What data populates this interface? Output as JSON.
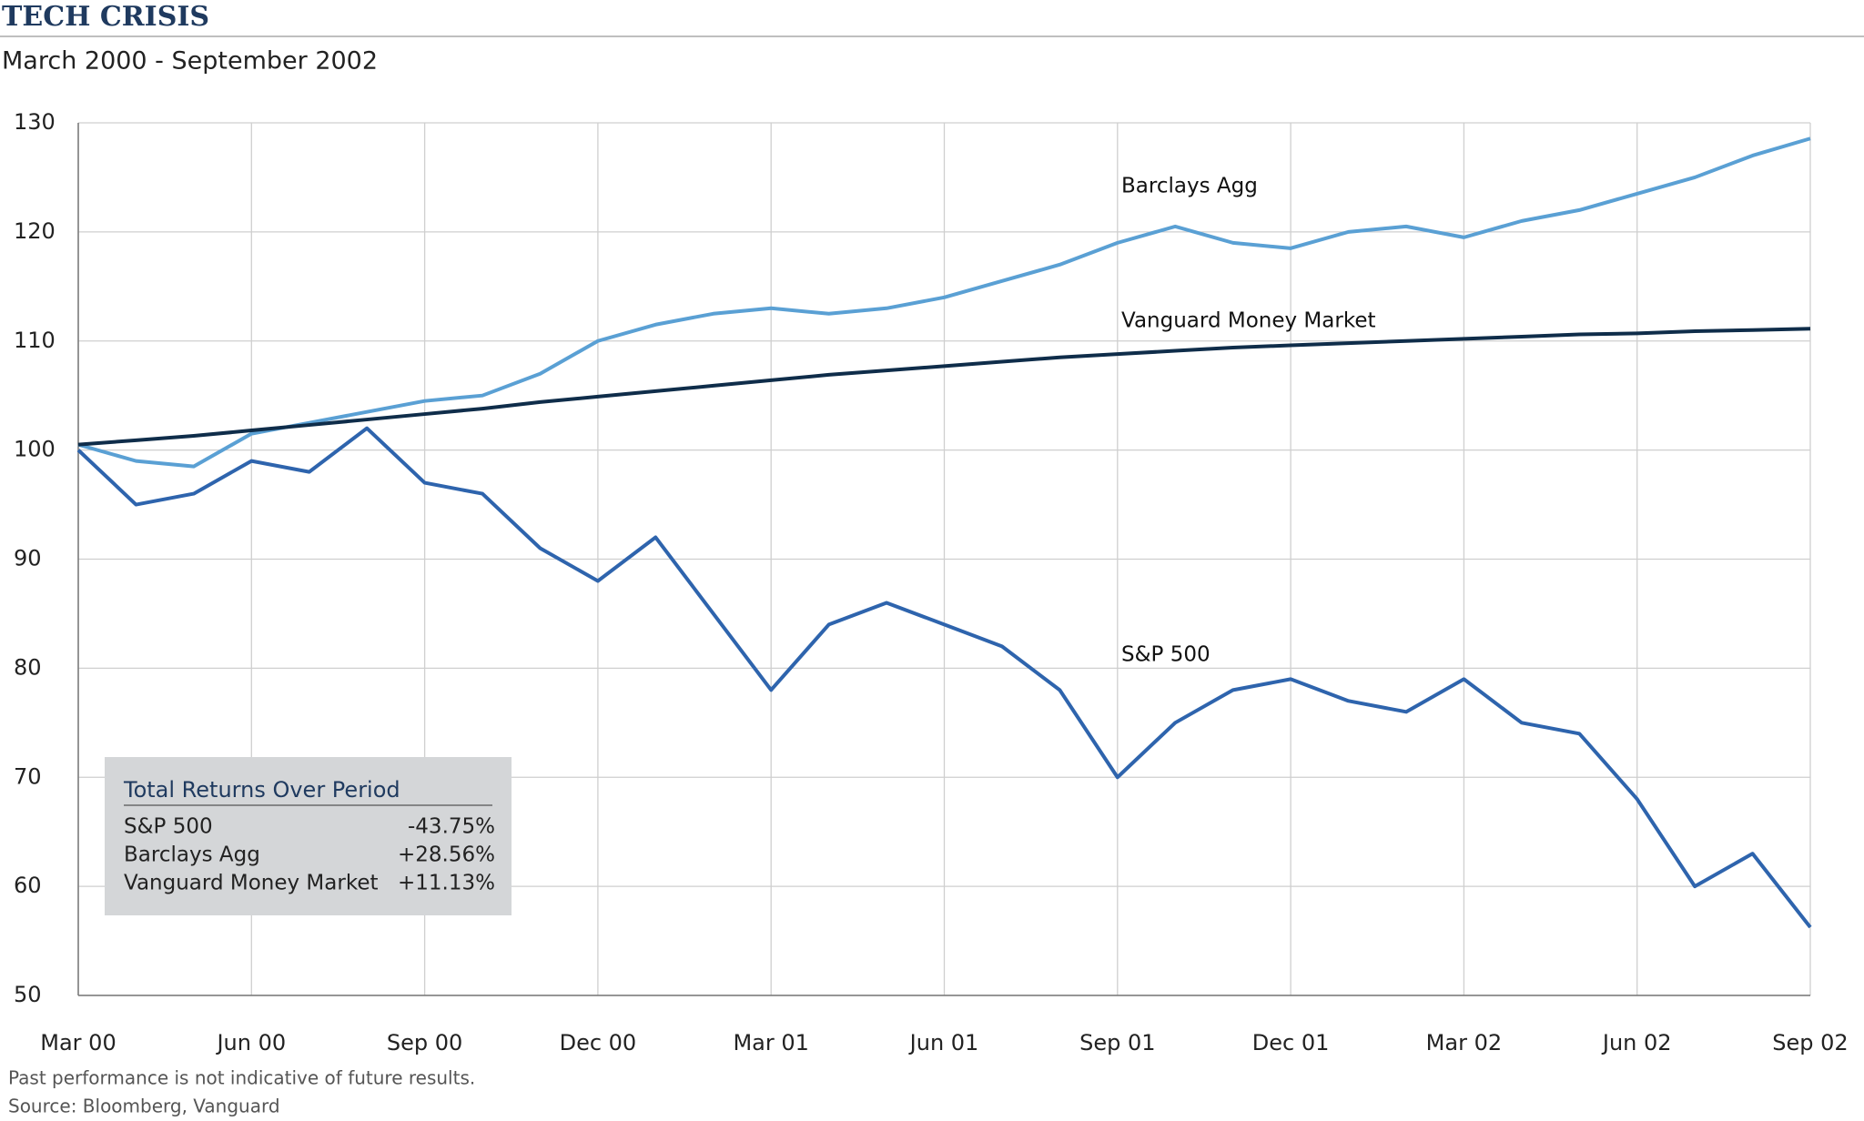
{
  "chart_data": {
    "type": "line",
    "title": "TECH CRISIS",
    "subtitle": "March 2000 - September 2002",
    "categories": [
      "Mar 00",
      null,
      null,
      "Jun 00",
      null,
      null,
      "Sep 00",
      null,
      null,
      "Dec 00",
      null,
      null,
      "Mar 01",
      null,
      null,
      "Jun 01",
      null,
      null,
      "Sep 01",
      null,
      null,
      "Dec 01",
      null,
      null,
      "Mar 02",
      null,
      null,
      "Jun 02",
      null,
      null,
      "Sep 02"
    ],
    "series": [
      {
        "name": "Barclays Agg",
        "color": "#5aa0d4",
        "values": [
          100.5,
          99,
          98.5,
          101.5,
          102.5,
          103.5,
          104.5,
          105,
          107,
          110,
          111.5,
          112.5,
          113,
          112.5,
          113,
          114,
          115.5,
          117,
          119,
          120.5,
          119,
          118.5,
          120,
          120.5,
          119.5,
          121,
          122,
          123.5,
          125,
          127,
          128.56
        ]
      },
      {
        "name": "Vanguard Money Market",
        "color": "#0f2d4a",
        "values": [
          100.5,
          100.9,
          101.3,
          101.8,
          102.3,
          102.8,
          103.3,
          103.8,
          104.4,
          104.9,
          105.4,
          105.9,
          106.4,
          106.9,
          107.3,
          107.7,
          108.1,
          108.5,
          108.8,
          109.1,
          109.4,
          109.6,
          109.8,
          110.0,
          110.2,
          110.4,
          110.6,
          110.7,
          110.9,
          111.0,
          111.13
        ]
      },
      {
        "name": "S&P 500",
        "color": "#2e64ad",
        "values": [
          100,
          95,
          96,
          99,
          98,
          102,
          97,
          96,
          91,
          88,
          92,
          85,
          78,
          84,
          86,
          84,
          82,
          78,
          70,
          75,
          78,
          79,
          77,
          76,
          79,
          75,
          74,
          68,
          60,
          63,
          56.25
        ]
      }
    ],
    "ylim": [
      50,
      130
    ],
    "yticks": [
      50,
      60,
      70,
      80,
      90,
      100,
      110,
      120,
      130
    ],
    "grid": true,
    "inset": {
      "title": "Total Returns Over Period",
      "rows": [
        [
          "S&P 500",
          "-43.75%"
        ],
        [
          "Barclays Agg",
          "+28.56%"
        ],
        [
          "Vanguard Money Market",
          "+11.13%"
        ]
      ]
    },
    "notes": [
      "Past performance is not indicative of future results.",
      "Source: Bloomberg, Vanguard"
    ]
  }
}
